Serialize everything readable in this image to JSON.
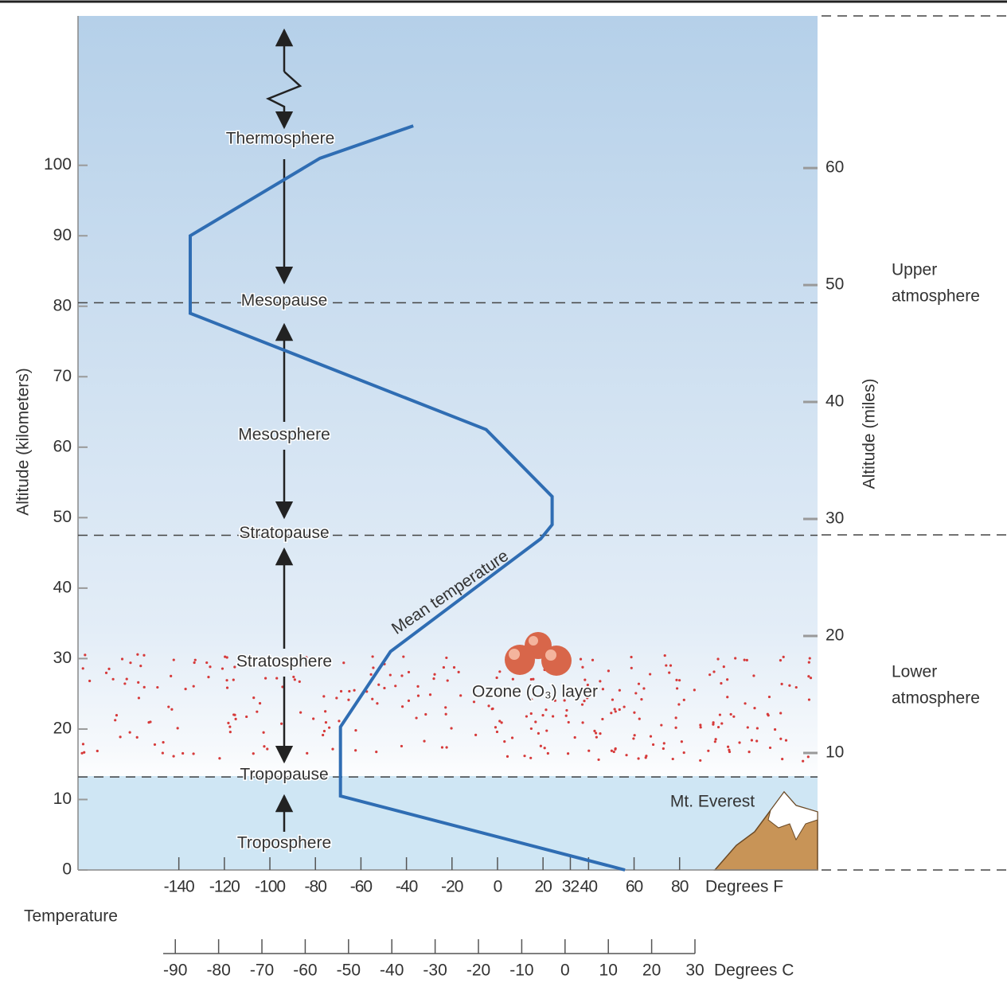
{
  "chart_data": {
    "type": "line",
    "x_label": "Temperature",
    "x_unit_label": "Degrees F",
    "x2_unit_label": "Degrees C",
    "y_label": "Altitude (kilometers)",
    "y2_label": "Altitude (miles)",
    "series": [
      {
        "name": "Mean temperature",
        "color": "#2f6db3",
        "x": [
          56,
          -69,
          -69,
          -47,
          19,
          24,
          24,
          -5,
          -135,
          -135,
          -78,
          -37
        ],
        "values": [
          0,
          10.5,
          20.3,
          31,
          47,
          49,
          53,
          62.5,
          79,
          90,
          101,
          105.6
        ]
      }
    ],
    "xlim": [
      -184.3,
      140.6
    ],
    "xticks": [
      -140,
      -120,
      -100,
      -80,
      -60,
      -40,
      -20,
      0,
      20,
      32,
      40,
      60,
      80
    ],
    "x2lim": [
      -92.8,
      30
    ],
    "x2ticks": [
      -90,
      -80,
      -70,
      -60,
      -50,
      -40,
      -30,
      -20,
      -10,
      0,
      10,
      20,
      30
    ],
    "ylim": [
      0,
      121.2
    ],
    "yticks": [
      0,
      10,
      20,
      30,
      40,
      50,
      60,
      70,
      80,
      90,
      100
    ],
    "y2lim": [
      0,
      73
    ],
    "y2ticks": [
      10,
      20,
      30,
      40,
      50,
      60
    ],
    "boundaries": [
      {
        "label": "Tropopause",
        "value": 13.2
      },
      {
        "label": "Stratopause",
        "value": 47.5
      },
      {
        "label": "Mesopause",
        "value": 80.5
      }
    ],
    "layers": [
      "Troposphere",
      "Stratosphere",
      "Mesosphere",
      "Thermosphere"
    ],
    "ozone_label": "Ozone (O₃) layer",
    "everest_label": "Mt. Everest",
    "regions": [
      [
        "Upper",
        "atmosphere"
      ],
      [
        "Lower",
        "atmosphere"
      ]
    ]
  }
}
